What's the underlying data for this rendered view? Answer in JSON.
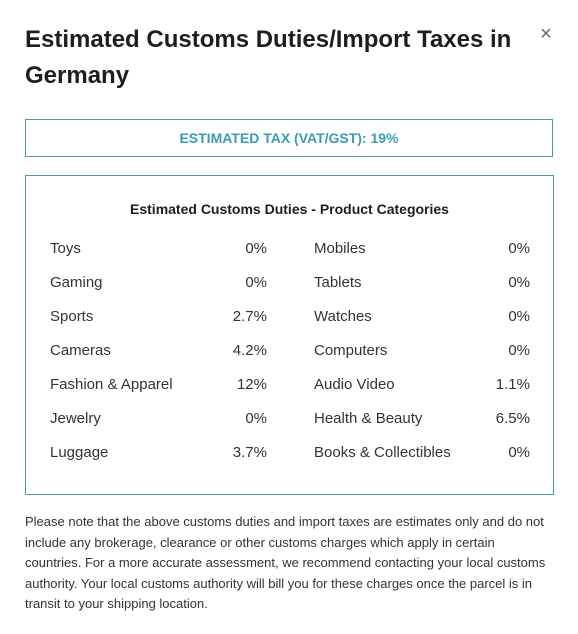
{
  "modal": {
    "title": "Estimated Customs Duties/Import Taxes in Germany",
    "close_glyph": "×",
    "tax_label": "ESTIMATED TAX (VAT/GST): 19%",
    "duties": {
      "heading": "Estimated Customs Duties - Product Categories",
      "left": [
        {
          "category": "Toys",
          "rate": "0%"
        },
        {
          "category": "Gaming",
          "rate": "0%"
        },
        {
          "category": "Sports",
          "rate": "2.7%"
        },
        {
          "category": "Cameras",
          "rate": "4.2%"
        },
        {
          "category": "Fashion & Apparel",
          "rate": "12%"
        },
        {
          "category": "Jewelry",
          "rate": "0%"
        },
        {
          "category": "Luggage",
          "rate": "3.7%"
        }
      ],
      "right": [
        {
          "category": "Mobiles",
          "rate": "0%"
        },
        {
          "category": "Tablets",
          "rate": "0%"
        },
        {
          "category": "Watches",
          "rate": "0%"
        },
        {
          "category": "Computers",
          "rate": "0%"
        },
        {
          "category": "Audio Video",
          "rate": "1.1%"
        },
        {
          "category": "Health & Beauty",
          "rate": "6.5%"
        },
        {
          "category": "Books & Collectibles",
          "rate": "0%"
        }
      ]
    },
    "disclaimer": "Please note that the above customs duties and import taxes are estimates only and do not include any brokerage, clearance or other customs charges which apply in certain countries. For a more accurate assessment, we recommend contacting your local customs authority. Your local customs authority will bill you for these charges once the parcel is in transit to your shipping location."
  },
  "colors": {
    "accent": "#3a9bb5",
    "border": "#4a97a8",
    "text": "#333333"
  },
  "icons": {
    "close": "close-icon"
  }
}
